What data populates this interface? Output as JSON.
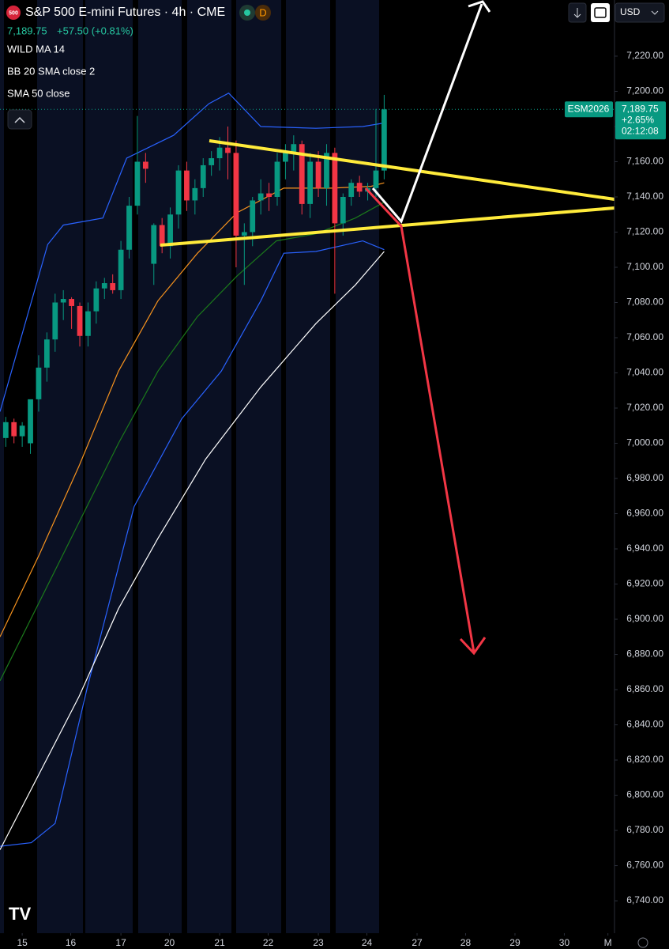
{
  "chart_data": {
    "type": "candlestick",
    "logo": "500",
    "title": "S&P 500 E-mini Futures · 4h · CME",
    "badge": "D",
    "quote": {
      "last": "7,189.75",
      "change": "+57.50 (+0.81%)"
    },
    "currency": "USD",
    "up_color": "#089981",
    "down_color": "#f23645",
    "x": [
      0.7,
      1.7,
      2.7,
      3.7,
      4.7,
      5.7,
      6.7,
      7.7,
      8.7,
      9.7,
      10.7,
      11.7,
      12.7,
      13.7,
      14.7,
      15.7,
      16.7,
      17.7,
      18.7,
      19.7,
      20.7,
      21.7,
      22.7,
      23.7,
      24.7,
      25.7,
      26.7,
      27.7,
      28.7,
      29.7,
      30.7,
      31.7,
      32.7,
      33.7,
      34.7,
      35.7,
      36.7,
      37.7,
      38.7,
      39.7,
      40.7,
      41.7,
      42.7,
      43.7,
      44.7,
      45.7,
      46.7
    ],
    "open": [
      7003,
      7012,
      7004,
      7000,
      7025,
      7043,
      7059,
      7080,
      7082,
      7078,
      7061,
      7075,
      7088,
      7091,
      7087,
      7110,
      7135,
      7160,
      7102,
      7124,
      7112,
      7130,
      7155,
      7138,
      7145,
      7158,
      7162,
      7168,
      7165,
      7118,
      7120,
      7138,
      7142,
      7140,
      7160,
      7165,
      7170,
      7136,
      7160,
      7145,
      7165,
      7125,
      7140,
      7148,
      7143,
      7145,
      7155
    ],
    "high": [
      7015,
      7014,
      7012,
      7020,
      7050,
      7063,
      7085,
      7087,
      7083,
      7080,
      7080,
      7092,
      7094,
      7096,
      7115,
      7140,
      7186,
      7165,
      7125,
      7128,
      7134,
      7158,
      7160,
      7150,
      7162,
      7166,
      7174,
      7180,
      7172,
      7125,
      7140,
      7150,
      7148,
      7165,
      7170,
      7175,
      7172,
      7165,
      7166,
      7170,
      7168,
      7142,
      7150,
      7152,
      7148,
      7190,
      7198
    ],
    "low": [
      6998,
      7000,
      6998,
      6994,
      7018,
      7035,
      7052,
      7070,
      7065,
      7055,
      7055,
      7068,
      7082,
      7085,
      7082,
      7105,
      7130,
      7148,
      7090,
      7108,
      7105,
      7122,
      7132,
      7130,
      7140,
      7152,
      7155,
      7150,
      7100,
      7090,
      7112,
      7130,
      7132,
      7135,
      7150,
      7155,
      7130,
      7128,
      7140,
      7135,
      7085,
      7118,
      7135,
      7140,
      7138,
      7140,
      7150
    ],
    "close": [
      7012,
      7004,
      7010,
      7025,
      7043,
      7059,
      7080,
      7082,
      7078,
      7061,
      7075,
      7088,
      7091,
      7087,
      7110,
      7135,
      7160,
      7156,
      7124,
      7112,
      7130,
      7155,
      7138,
      7145,
      7158,
      7162,
      7168,
      7165,
      7118,
      7120,
      7138,
      7142,
      7140,
      7160,
      7165,
      7170,
      7136,
      7160,
      7145,
      7165,
      7125,
      7140,
      7148,
      7143,
      7145,
      7155,
      7189.75
    ],
    "indicators": [
      {
        "name": "WILD MA 14",
        "lines": [
          {
            "color": "#f7931e",
            "x": [
              0,
              4.8,
              9.6,
              14.4,
              19.2,
              24,
              28.8,
              34.5,
              40.3,
              45.1,
              46.7
            ],
            "values": [
              6890,
              6937,
              6987,
              7041,
              7081,
              7108,
              7131,
              7145,
              7145,
              7146,
              7148
            ]
          }
        ]
      },
      {
        "name": "BB 20 SMA close 2",
        "lines": [
          {
            "color": "#2962ff",
            "x": [
              0,
              5.8,
              7.7,
              12.5,
              15.4,
              21.1,
              25.4,
              27.8,
              31.7,
              38.4,
              44.1,
              46.7
            ],
            "values": [
              7018,
              7113,
              7124,
              7128,
              7162,
              7175,
              7193,
              7199,
              7180,
              7179,
              7180,
              7182
            ]
          },
          {
            "color": "#1b7a1b",
            "x": [
              0,
              4.8,
              9.6,
              14.4,
              19.2,
              24,
              28.8,
              33.6,
              38.4,
              43.2,
              46.7
            ],
            "values": [
              6865,
              6910,
              6955,
              7000,
              7041,
              7072,
              7095,
              7115,
              7119,
              7128,
              7137
            ]
          },
          {
            "color": "#2962ff",
            "x": [
              0,
              3.8,
              6.7,
              10.6,
              16.3,
              22.1,
              26.9,
              31.7,
              34.5,
              38.4,
              44.1,
              46.7
            ],
            "values": [
              6771,
              6773,
              6784,
              6861,
              6964,
              7014,
              7041,
              7081,
              7108,
              7109,
              7115,
              7110
            ]
          }
        ]
      },
      {
        "name": "SMA 50 close",
        "lines": [
          {
            "color": "#ffffff",
            "x": [
              0,
              9.6,
              14.4,
              19.2,
              25,
              31.7,
              38.4,
              43.2,
              46.7
            ],
            "values": [
              6769,
              6856,
              6906,
              6946,
              6991,
              7032,
              7068,
              7090,
              7109
            ]
          }
        ]
      }
    ],
    "price_tag": {
      "symbol": "ESM2026",
      "price": {
        "value": 7189.75,
        "label": "7,189.75"
      },
      "change": "+2.65%",
      "countdown": "02:12:08"
    },
    "xlim": [
      0,
      74.7
    ],
    "xticks": [
      {
        "value": 2.7,
        "label": "15"
      },
      {
        "value": 8.6,
        "label": "16"
      },
      {
        "value": 14.7,
        "label": "17"
      },
      {
        "value": 20.6,
        "label": "20"
      },
      {
        "value": 26.7,
        "label": "21"
      },
      {
        "value": 32.6,
        "label": "22"
      },
      {
        "value": 38.7,
        "label": "23"
      },
      {
        "value": 44.6,
        "label": "24"
      },
      {
        "value": 50.7,
        "label": "27"
      },
      {
        "value": 56.6,
        "label": "28"
      },
      {
        "value": 62.6,
        "label": "29"
      },
      {
        "value": 68.6,
        "label": "30"
      },
      {
        "value": 73.9,
        "label": "M"
      }
    ],
    "ylim": [
      6721.6,
      7251.9
    ],
    "yticks": [
      {
        "value": 7220,
        "label": "7,220.00"
      },
      {
        "value": 7200,
        "label": "7,200.00"
      },
      {
        "value": 7180,
        "label": "7,180.00"
      },
      {
        "value": 7160,
        "label": "7,160.00"
      },
      {
        "value": 7140,
        "label": "7,140.00"
      },
      {
        "value": 7120,
        "label": "7,120.00"
      },
      {
        "value": 7100,
        "label": "7,100.00"
      },
      {
        "value": 7080,
        "label": "7,080.00"
      },
      {
        "value": 7060,
        "label": "7,060.00"
      },
      {
        "value": 7040,
        "label": "7,040.00"
      },
      {
        "value": 7020,
        "label": "7,020.00"
      },
      {
        "value": 7000,
        "label": "7,000.00"
      },
      {
        "value": 6980,
        "label": "6,980.00"
      },
      {
        "value": 6960,
        "label": "6,960.00"
      },
      {
        "value": 6940,
        "label": "6,940.00"
      },
      {
        "value": 6920,
        "label": "6,920.00"
      },
      {
        "value": 6900,
        "label": "6,900.00"
      },
      {
        "value": 6880,
        "label": "6,880.00"
      },
      {
        "value": 6860,
        "label": "6,860.00"
      },
      {
        "value": 6840,
        "label": "6,840.00"
      },
      {
        "value": 6820,
        "label": "6,820.00"
      },
      {
        "value": 6800,
        "label": "6,800.00"
      },
      {
        "value": 6780,
        "label": "6,780.00"
      },
      {
        "value": 6760,
        "label": "6,760.00"
      },
      {
        "value": 6740,
        "label": "6,740.00"
      }
    ]
  }
}
